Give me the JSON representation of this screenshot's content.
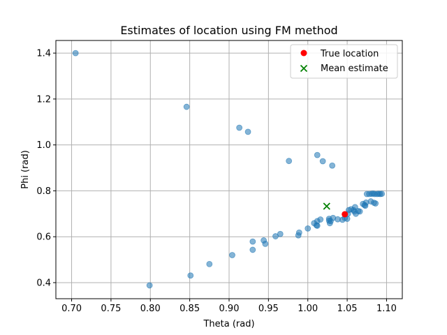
{
  "chart_data": {
    "type": "scatter",
    "title": "Estimates of location using FM method",
    "xlabel": "Theta (rad)",
    "ylabel": "Phi (rad)",
    "xlim": [
      0.68,
      1.12
    ],
    "ylim": [
      0.33,
      1.455
    ],
    "xticks": [
      "0.70",
      "0.75",
      "0.80",
      "0.85",
      "0.90",
      "0.95",
      "1.00",
      "1.05",
      "1.10"
    ],
    "yticks": [
      "0.4",
      "0.6",
      "0.8",
      "1.0",
      "1.2",
      "1.4"
    ],
    "grid": true,
    "legend_position": "top-right",
    "legend": [
      {
        "label": "True location",
        "marker": "circle",
        "color": "#ff0000"
      },
      {
        "label": "Mean estimate",
        "marker": "x",
        "color": "#008000"
      }
    ],
    "series": [
      {
        "color": "#1f77b4",
        "points": [
          [
            0.705,
            1.4
          ],
          [
            0.846,
            1.166
          ],
          [
            0.913,
            1.075
          ],
          [
            0.924,
            1.057
          ],
          [
            0.976,
            0.93
          ],
          [
            1.012,
            0.956
          ],
          [
            1.019,
            0.929
          ],
          [
            1.031,
            0.91
          ],
          [
            0.799,
            0.388
          ],
          [
            0.851,
            0.431
          ],
          [
            0.875,
            0.481
          ],
          [
            0.904,
            0.52
          ],
          [
            0.93,
            0.579
          ],
          [
            0.93,
            0.543
          ],
          [
            0.944,
            0.584
          ],
          [
            0.946,
            0.569
          ],
          [
            0.959,
            0.602
          ],
          [
            0.965,
            0.612
          ],
          [
            0.988,
            0.606
          ],
          [
            0.989,
            0.618
          ],
          [
            1.0,
            0.636
          ],
          [
            1.008,
            0.659
          ],
          [
            1.011,
            0.65
          ],
          [
            1.012,
            0.648
          ],
          [
            1.012,
            0.668
          ],
          [
            1.016,
            0.675
          ],
          [
            1.027,
            0.678
          ],
          [
            1.027,
            0.67
          ],
          [
            1.028,
            0.659
          ],
          [
            1.029,
            0.668
          ],
          [
            1.032,
            0.682
          ],
          [
            1.038,
            0.676
          ],
          [
            1.044,
            0.674
          ],
          [
            1.047,
            0.682
          ],
          [
            1.05,
            0.678
          ],
          [
            1.051,
            0.7
          ],
          [
            1.052,
            0.716
          ],
          [
            1.055,
            0.72
          ],
          [
            1.058,
            0.716
          ],
          [
            1.059,
            0.71
          ],
          [
            1.06,
            0.729
          ],
          [
            1.061,
            0.7
          ],
          [
            1.064,
            0.712
          ],
          [
            1.066,
            0.71
          ],
          [
            1.07,
            0.743
          ],
          [
            1.072,
            0.738
          ],
          [
            1.073,
            0.735
          ],
          [
            1.074,
            0.749
          ],
          [
            1.075,
            0.786
          ],
          [
            1.078,
            0.786
          ],
          [
            1.08,
            0.754
          ],
          [
            1.081,
            0.787
          ],
          [
            1.083,
            0.788
          ],
          [
            1.084,
            0.748
          ],
          [
            1.085,
            0.786
          ],
          [
            1.086,
            0.745
          ],
          [
            1.088,
            0.786
          ],
          [
            1.09,
            0.787
          ],
          [
            1.092,
            0.786
          ],
          [
            1.094,
            0.787
          ]
        ]
      }
    ],
    "true_location": [
      1.047,
      0.698
    ],
    "mean_estimate": [
      1.024,
      0.733
    ]
  }
}
